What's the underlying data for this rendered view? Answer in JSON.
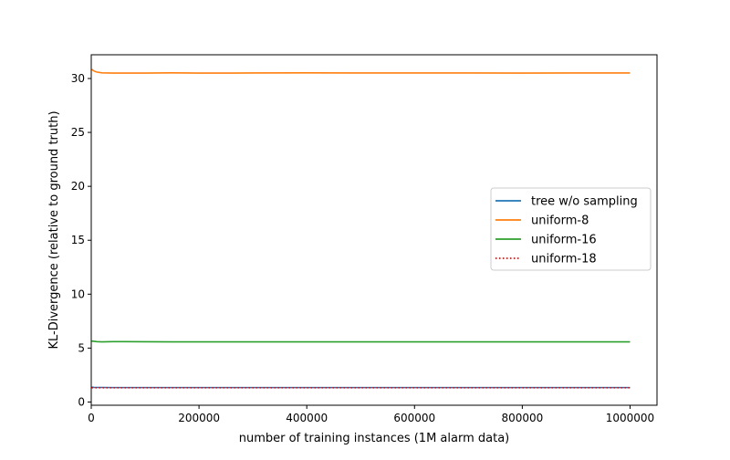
{
  "chart_data": {
    "type": "line",
    "title": "",
    "xlabel": "number of training instances (1M alarm data)",
    "ylabel": "KL-Divergence (relative to ground truth)",
    "xlim": [
      0,
      1050000
    ],
    "ylim": [
      -0.3,
      32.2
    ],
    "xticks": [
      0,
      200000,
      400000,
      600000,
      800000,
      1000000
    ],
    "xtick_labels": [
      "0",
      "200000",
      "400000",
      "600000",
      "800000",
      "1000000"
    ],
    "yticks": [
      0,
      5,
      10,
      15,
      20,
      25,
      30
    ],
    "ytick_labels": [
      "0",
      "5",
      "10",
      "15",
      "20",
      "25",
      "30"
    ],
    "grid": false,
    "legend_position": "center-right",
    "x": [
      1000,
      5000,
      10000,
      20000,
      40000,
      60000,
      100000,
      150000,
      200000,
      300000,
      400000,
      500000,
      600000,
      700000,
      800000,
      900000,
      1000000
    ],
    "series": [
      {
        "name": "tree w/o sampling",
        "color": "#1f77b4",
        "style": "solid",
        "values": [
          1.38,
          1.36,
          1.35,
          1.35,
          1.34,
          1.34,
          1.34,
          1.34,
          1.34,
          1.34,
          1.34,
          1.34,
          1.34,
          1.34,
          1.34,
          1.34,
          1.34
        ]
      },
      {
        "name": "uniform-8",
        "color": "#ff7f0e",
        "style": "solid",
        "values": [
          30.85,
          30.7,
          30.6,
          30.52,
          30.5,
          30.5,
          30.5,
          30.52,
          30.5,
          30.51,
          30.52,
          30.51,
          30.51,
          30.51,
          30.5,
          30.51,
          30.51
        ]
      },
      {
        "name": "uniform-16",
        "color": "#2ca02c",
        "style": "solid",
        "values": [
          5.65,
          5.63,
          5.6,
          5.58,
          5.6,
          5.6,
          5.59,
          5.58,
          5.58,
          5.58,
          5.58,
          5.58,
          5.58,
          5.58,
          5.58,
          5.58,
          5.58
        ]
      },
      {
        "name": "uniform-18",
        "color": "#ff0000",
        "style": "dotted",
        "values": [
          1.33,
          1.32,
          1.32,
          1.32,
          1.32,
          1.32,
          1.32,
          1.32,
          1.32,
          1.32,
          1.32,
          1.32,
          1.32,
          1.32,
          1.32,
          1.32,
          1.32
        ]
      }
    ]
  }
}
